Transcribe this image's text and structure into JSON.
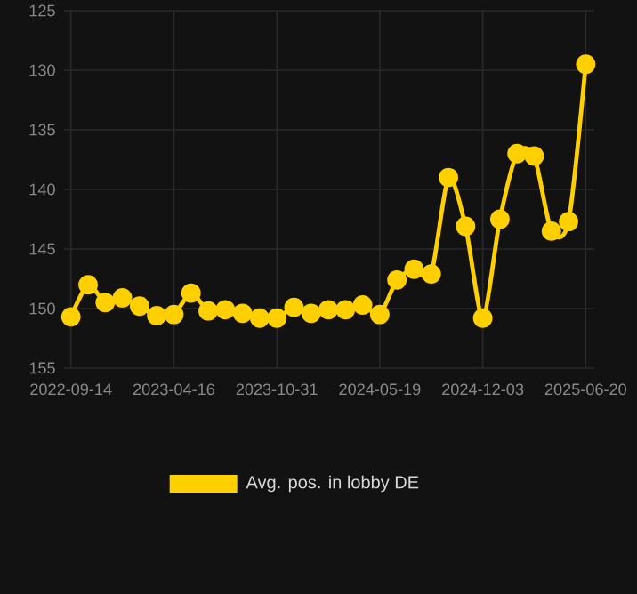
{
  "chart_data": {
    "type": "line",
    "categories": [
      "2022-09-14",
      null,
      null,
      null,
      null,
      null,
      "2023-04-16",
      null,
      null,
      null,
      null,
      null,
      "2023-10-31",
      null,
      null,
      null,
      null,
      null,
      "2024-05-19",
      null,
      null,
      null,
      null,
      null,
      "2024-12-03",
      null,
      null,
      null,
      null,
      null,
      "2025-06-20"
    ],
    "series": [
      {
        "name": "Avg. pos. in lobby DE",
        "color": "#ffd000",
        "values": [
          150.7,
          148.0,
          149.5,
          149.1,
          149.8,
          150.6,
          150.5,
          148.7,
          150.2,
          150.1,
          150.4,
          150.8,
          150.8,
          149.9,
          150.4,
          150.1,
          150.1,
          149.7,
          150.5,
          147.6,
          146.7,
          147.1,
          139.0,
          143.1,
          150.8,
          142.5,
          137.0,
          137.2,
          143.5,
          142.7,
          129.5
        ]
      }
    ],
    "ylim": [
      155,
      125
    ],
    "yticks": [
      125,
      130,
      135,
      140,
      145,
      150,
      155
    ],
    "grid": true,
    "legend": "bottom",
    "marker": "circle",
    "line_style": "solid"
  }
}
